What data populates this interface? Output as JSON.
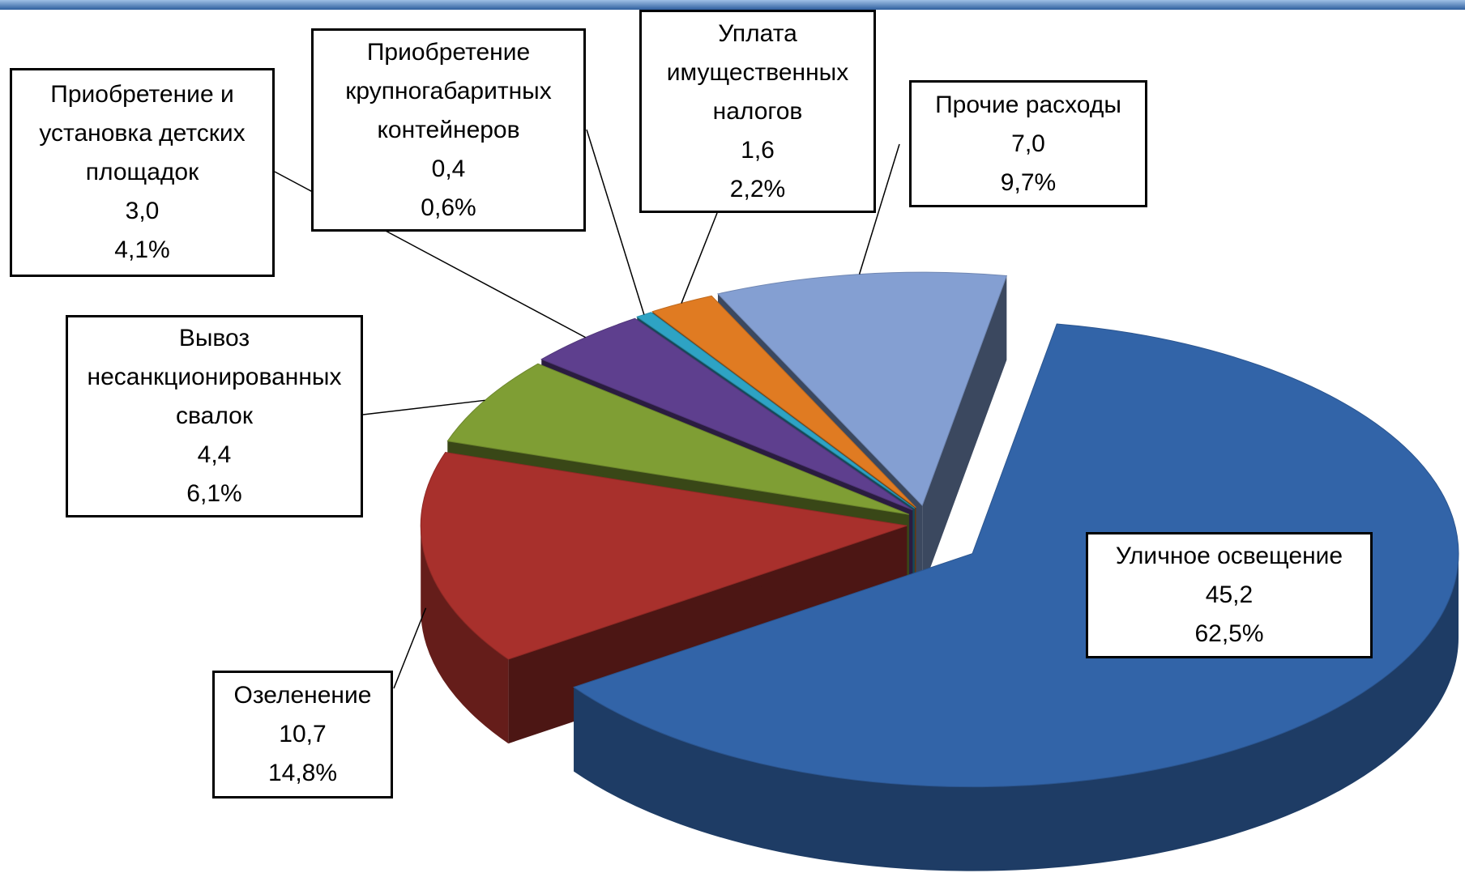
{
  "chart_data": {
    "type": "pie",
    "categories": [
      "Уличное освещение",
      "Озеленение",
      "Вывоз несанкционированных свалок",
      "Приобретение и установка детских площадок",
      "Приобретение крупногабаритных контейнеров",
      "Уплата имущественных налогов",
      "Прочие расходы"
    ],
    "values": [
      45.2,
      10.7,
      4.4,
      3.0,
      0.4,
      1.6,
      7.0
    ],
    "value_labels": [
      "45,2",
      "10,7",
      "4,4",
      "3,0",
      "0,4",
      "1,6",
      "7,0"
    ],
    "percents": [
      62.5,
      14.8,
      6.1,
      4.1,
      0.6,
      2.2,
      9.7
    ],
    "percent_labels": [
      "62,5%",
      "14,8%",
      "6,1%",
      "4,1%",
      "0,6%",
      "2,2%",
      "9,7%"
    ],
    "colors": [
      "#3264a8",
      "#a8302c",
      "#7f9e34",
      "#5e3f8e",
      "#2ea3c4",
      "#e07b22",
      "#849fd2"
    ]
  }
}
